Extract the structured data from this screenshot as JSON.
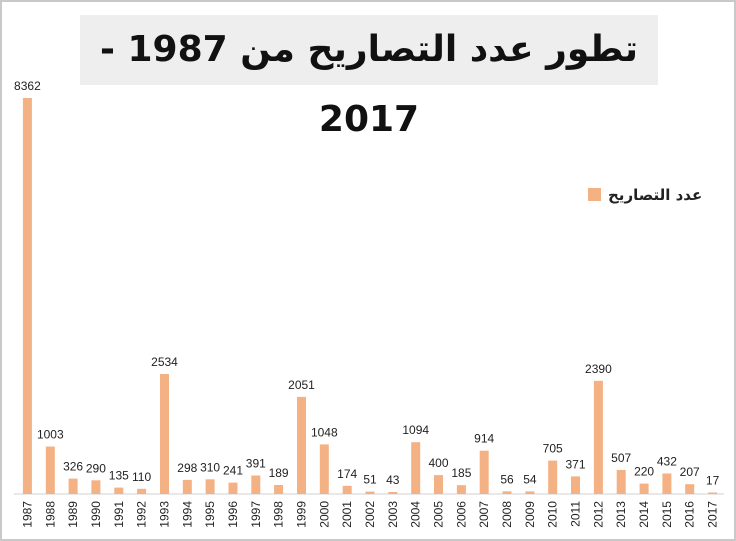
{
  "chart_data": {
    "type": "bar",
    "title": "تطور عدد التصاريح من 1987 - 2017",
    "categories": [
      "1987",
      "1988",
      "1989",
      "1990",
      "1991",
      "1992",
      "1993",
      "1994",
      "1995",
      "1996",
      "1997",
      "1998",
      "1999",
      "2000",
      "2001",
      "2002",
      "2003",
      "2004",
      "2005",
      "2006",
      "2007",
      "2008",
      "2009",
      "2010",
      "2011",
      "2012",
      "2013",
      "2014",
      "2015",
      "2016",
      "2017"
    ],
    "series": [
      {
        "name": "عدد التصاريح",
        "values": [
          8362,
          1003,
          326,
          290,
          135,
          110,
          2534,
          298,
          310,
          241,
          391,
          189,
          2051,
          1048,
          174,
          51,
          43,
          1094,
          400,
          185,
          914,
          56,
          54,
          705,
          371,
          2390,
          507,
          220,
          432,
          207,
          17
        ]
      }
    ],
    "ylim": [
      0,
      8362
    ],
    "grid": false,
    "legend": "right",
    "bar_color": "#f4b183"
  }
}
